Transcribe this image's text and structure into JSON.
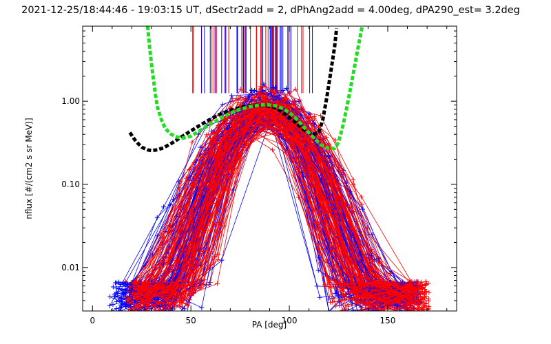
{
  "chart_data": {
    "type": "line",
    "title": "2021-12-25/18:44:46 - 19:03:15 UT, dSectr2add = 2, dPhAng2add = 4.00deg, dPA290_est=   3.2deg",
    "xlabel": "PA [deg]",
    "ylabel": "nflux [#/(cm2 s sr MeV)]",
    "xlim": [
      -5,
      185
    ],
    "ylim": [
      0.003,
      8
    ],
    "yscale": "log",
    "grid": false,
    "xticks": [
      0,
      50,
      100,
      150
    ],
    "xtick_labels": [
      "0",
      "50",
      "100",
      "150"
    ],
    "yticks": [
      0.01,
      0.1,
      1.0
    ],
    "ytick_labels": [
      "0.01",
      "0.10",
      "1.00"
    ],
    "colors": {
      "red": "#ff0000",
      "blue": "#0000ff",
      "black": "#000000",
      "green": "#22dd22"
    },
    "series": [
      {
        "color": "red",
        "style": "lines+plus-markers",
        "count_approx": 70,
        "description_values": {
          "peak_pa": 88,
          "peak_flux": 0.9,
          "min_flux": 0.004,
          "pa_range": [
            18,
            170
          ]
        }
      },
      {
        "color": "blue",
        "style": "lines+plus-markers",
        "count_approx": 70,
        "description_values": {
          "peak_pa": 88,
          "peak_flux": 0.9,
          "min_flux": 0.004,
          "pa_range": [
            10,
            165
          ]
        }
      },
      {
        "color": "black",
        "style": "thick-dashed",
        "x": [
          19,
          22,
          25,
          28,
          30,
          33,
          36,
          40,
          45,
          50,
          55,
          60,
          65,
          70,
          75,
          80,
          85,
          88,
          90,
          93,
          96,
          100,
          104,
          108,
          112,
          115,
          117,
          119,
          121,
          123,
          124
        ],
        "y": [
          0.42,
          0.33,
          0.28,
          0.26,
          0.255,
          0.26,
          0.275,
          0.31,
          0.37,
          0.44,
          0.52,
          0.61,
          0.7,
          0.78,
          0.84,
          0.88,
          0.9,
          0.89,
          0.87,
          0.83,
          0.75,
          0.64,
          0.53,
          0.44,
          0.4,
          0.42,
          0.6,
          1.1,
          2.2,
          4.5,
          7.5
        ]
      },
      {
        "color": "green",
        "style": "thick-dashed",
        "x": [
          28,
          29,
          30,
          31,
          32,
          33,
          35,
          37,
          40,
          43,
          46,
          50,
          55,
          60,
          65,
          70,
          75,
          80,
          85,
          88,
          90,
          93,
          96,
          100,
          104,
          108,
          112,
          116,
          120,
          123,
          125,
          127,
          129,
          131,
          133,
          135,
          136,
          137
        ],
        "y": [
          8.0,
          4.5,
          2.8,
          1.8,
          1.2,
          0.85,
          0.6,
          0.47,
          0.4,
          0.37,
          0.36,
          0.38,
          0.45,
          0.53,
          0.62,
          0.72,
          0.8,
          0.86,
          0.9,
          0.91,
          0.9,
          0.88,
          0.83,
          0.73,
          0.6,
          0.47,
          0.37,
          0.3,
          0.27,
          0.27,
          0.32,
          0.48,
          0.8,
          1.4,
          2.5,
          4.5,
          6.0,
          8.0
        ]
      }
    ],
    "vertical_spikes": {
      "color_mix": [
        "blue",
        "red"
      ],
      "x_range": [
        50,
        112
      ],
      "y_from": 1.25,
      "y_to": 8
    }
  }
}
